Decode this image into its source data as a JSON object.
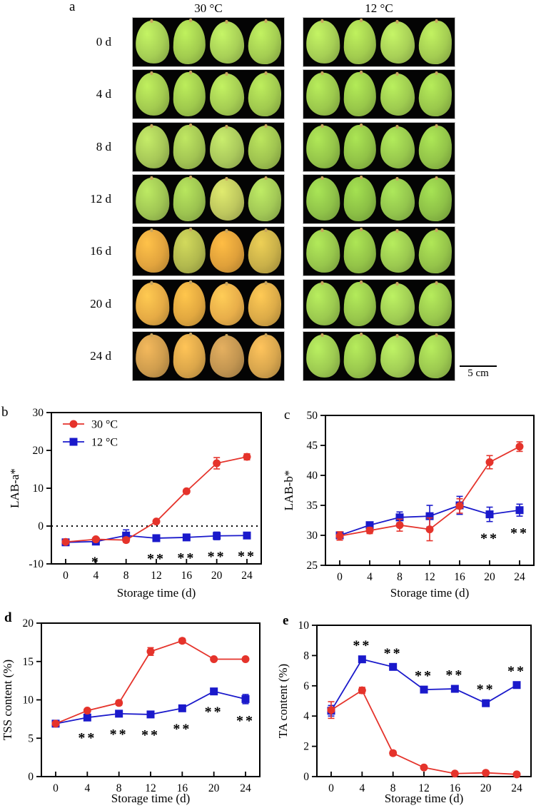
{
  "photo_panel": {
    "label": "a",
    "columns": [
      {
        "header": "30 °C"
      },
      {
        "header": "12 °C"
      }
    ],
    "scale_bar_label": "5 cm",
    "rows": [
      {
        "label": "0 d",
        "left": [
          "#a6cf55",
          "#a2cc4f",
          "#a8d057",
          "#a4cd52"
        ],
        "right": [
          "#a6cf55",
          "#a2cc4f",
          "#a8d057",
          "#a4cd52"
        ]
      },
      {
        "label": "4 d",
        "left": [
          "#a3cb50",
          "#9fc94d",
          "#a5cd53",
          "#a1ca4f"
        ],
        "right": [
          "#9cc94d",
          "#98c74a",
          "#9ecb50",
          "#9ac84c"
        ]
      },
      {
        "label": "8 d",
        "left": [
          "#a7c858",
          "#a2c453",
          "#aac95c",
          "#9fc350"
        ],
        "right": [
          "#95c54a",
          "#91c247",
          "#97c74d",
          "#93c449"
        ]
      },
      {
        "label": "12 d",
        "left": [
          "#a0c654",
          "#9cc350",
          "#bec75e",
          "#a2c856"
        ],
        "right": [
          "#8fc249",
          "#8bbf45",
          "#93c54d",
          "#8dc047"
        ]
      },
      {
        "label": "16 d",
        "left": [
          "#e2a43e",
          "#b2b94e",
          "#dfa03a",
          "#c9b049"
        ],
        "right": [
          "#97c64c",
          "#93c348",
          "#9bc950",
          "#95c44a"
        ]
      },
      {
        "label": "20 d",
        "left": [
          "#e6ab45",
          "#e2a840",
          "#e8ae4a",
          "#dcab48"
        ],
        "right": [
          "#9cca50",
          "#98c74c",
          "#a0cd54",
          "#9ac84e"
        ]
      },
      {
        "label": "24 d",
        "left": [
          "#cf9d4e",
          "#dba64a",
          "#c29551",
          "#d8a64e"
        ],
        "right": [
          "#9ecb52",
          "#9ac84e",
          "#a2ce56",
          "#9cc950"
        ]
      }
    ]
  },
  "chart_data": [
    {
      "type": "line",
      "panel": "b",
      "ylabel": "LAB-a*",
      "xlabel": "Storage time (d)",
      "ylim": [
        -10,
        30
      ],
      "yticks": [
        -10,
        0,
        10,
        20,
        30
      ],
      "x": [
        0,
        4,
        8,
        12,
        16,
        20,
        24
      ],
      "zero_dotted_line": true,
      "legend": true,
      "legend_position": "top-left",
      "series": [
        {
          "name": "30 °C",
          "color": "#e5332b",
          "marker": "circle",
          "values": [
            -4.2,
            -3.5,
            -3.7,
            1.2,
            9.2,
            16.6,
            18.3
          ],
          "errors": [
            0.4,
            0.4,
            0.6,
            0.4,
            0.5,
            1.5,
            0.8
          ]
        },
        {
          "name": "12 °C",
          "color": "#1a19cb",
          "marker": "square",
          "values": [
            -4.3,
            -4.1,
            -2.5,
            -3.2,
            -3.0,
            -2.6,
            -2.5
          ],
          "errors": [
            0.4,
            0.5,
            1.5,
            0.4,
            0.4,
            1.0,
            0.5
          ]
        }
      ],
      "significance": [
        {
          "x": 4,
          "text": "*",
          "position": "below"
        },
        {
          "x": 12,
          "text": "**",
          "position": "below"
        },
        {
          "x": 16,
          "text": "**",
          "position": "below"
        },
        {
          "x": 20,
          "text": "**",
          "position": "below"
        },
        {
          "x": 24,
          "text": "**",
          "position": "below"
        }
      ]
    },
    {
      "type": "line",
      "panel": "c",
      "ylabel": "LAB-b*",
      "xlabel": "Storage time (d)",
      "ylim": [
        25,
        50
      ],
      "yticks": [
        25,
        30,
        35,
        40,
        45,
        50
      ],
      "x": [
        0,
        4,
        8,
        12,
        16,
        20,
        24
      ],
      "zero_dotted_line": false,
      "legend": false,
      "series": [
        {
          "name": "30 °C",
          "color": "#e5332b",
          "marker": "circle",
          "values": [
            29.9,
            30.8,
            31.7,
            31.0,
            34.9,
            42.2,
            44.8
          ],
          "errors": [
            0.7,
            0.5,
            1.0,
            1.9,
            1.2,
            1.1,
            0.8
          ]
        },
        {
          "name": "12 °C",
          "color": "#1a19cb",
          "marker": "square",
          "values": [
            30.0,
            31.7,
            33.0,
            33.2,
            35.0,
            33.5,
            34.2
          ],
          "errors": [
            0.5,
            0.4,
            0.9,
            1.8,
            1.5,
            1.2,
            1.0
          ]
        }
      ],
      "significance": [
        {
          "x": 20,
          "text": "**",
          "position": "below"
        },
        {
          "x": 24,
          "text": "**",
          "position": "below"
        }
      ]
    },
    {
      "type": "line",
      "panel": "d",
      "ylabel": "TSS content (%)",
      "xlabel": "Storage time (d)",
      "ylim": [
        0,
        20
      ],
      "yticks": [
        0,
        5,
        10,
        15,
        20
      ],
      "x": [
        0,
        4,
        8,
        12,
        16,
        20,
        24
      ],
      "zero_dotted_line": false,
      "legend": false,
      "series": [
        {
          "name": "30 °C",
          "color": "#e5332b",
          "marker": "circle",
          "values": [
            6.9,
            8.6,
            9.6,
            16.3,
            17.7,
            15.3,
            15.3
          ],
          "errors": [
            0.2,
            0.2,
            0.3,
            0.5,
            0.3,
            0.2,
            0.2
          ]
        },
        {
          "name": "12 °C",
          "color": "#1a19cb",
          "marker": "square",
          "values": [
            6.9,
            7.7,
            8.2,
            8.1,
            8.9,
            11.1,
            10.1
          ],
          "errors": [
            0.2,
            0.3,
            0.2,
            0.3,
            0.2,
            0.3,
            0.6
          ]
        }
      ],
      "significance": [
        {
          "x": 4,
          "text": "**",
          "position": "below"
        },
        {
          "x": 8,
          "text": "**",
          "position": "below"
        },
        {
          "x": 12,
          "text": "**",
          "position": "below"
        },
        {
          "x": 16,
          "text": "**",
          "position": "below"
        },
        {
          "x": 20,
          "text": "**",
          "position": "below"
        },
        {
          "x": 24,
          "text": "**",
          "position": "below"
        }
      ]
    },
    {
      "type": "line",
      "panel": "e",
      "ylabel": "TA content (%)",
      "xlabel": "Storage time (d)",
      "ylim": [
        0,
        10
      ],
      "yticks": [
        0,
        2,
        4,
        6,
        8,
        10
      ],
      "x": [
        0,
        4,
        8,
        12,
        16,
        20,
        24
      ],
      "zero_dotted_line": false,
      "legend": false,
      "series": [
        {
          "name": "30 °C",
          "color": "#e5332b",
          "marker": "circle",
          "values": [
            4.4,
            5.7,
            1.55,
            0.6,
            0.2,
            0.25,
            0.15
          ],
          "errors": [
            0.55,
            0.2,
            0.15,
            0.1,
            0.05,
            0.08,
            0.05
          ]
        },
        {
          "name": "12 °C",
          "color": "#1a19cb",
          "marker": "square",
          "values": [
            4.35,
            7.75,
            7.25,
            5.75,
            5.8,
            4.85,
            6.05
          ],
          "errors": [
            0.35,
            0.2,
            0.2,
            0.15,
            0.15,
            0.15,
            0.2
          ]
        }
      ],
      "significance": [
        {
          "x": 4,
          "text": "**",
          "position": "above"
        },
        {
          "x": 8,
          "text": "**",
          "position": "above"
        },
        {
          "x": 12,
          "text": "**",
          "position": "above"
        },
        {
          "x": 16,
          "text": "**",
          "position": "above"
        },
        {
          "x": 20,
          "text": "**",
          "position": "above"
        },
        {
          "x": 24,
          "text": "**",
          "position": "above"
        }
      ]
    }
  ],
  "colors": {
    "red_series": "#e5332b",
    "blue_series": "#1a19cb",
    "photo_background": "#040404"
  }
}
